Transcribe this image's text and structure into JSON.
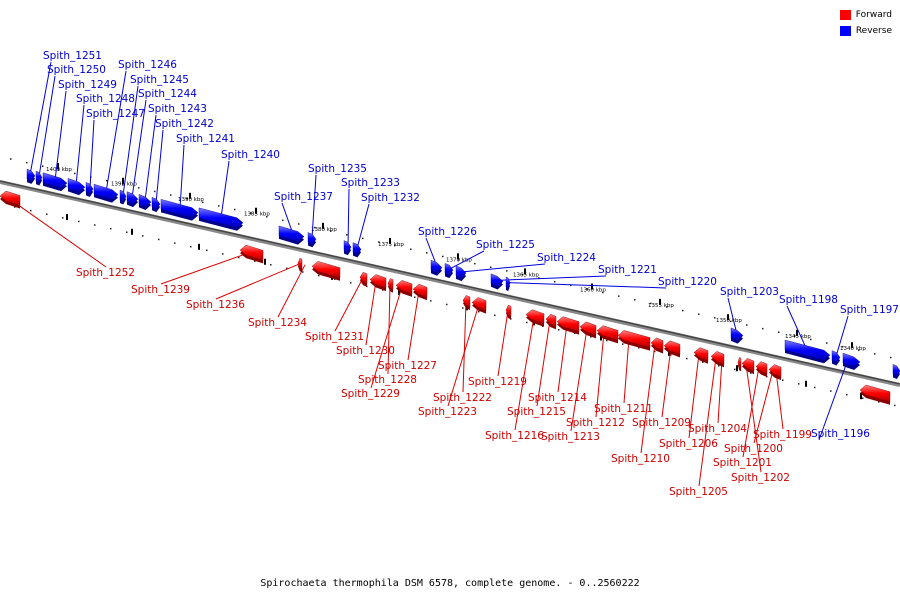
{
  "legend": {
    "forward_label": "Forward",
    "reverse_label": "Reverse",
    "forward_color": "#ff0000",
    "reverse_color": "#0000ff"
  },
  "caption": "Spirochaeta thermophila DSM 6578, complete genome. - 0..2560222",
  "ruler_ticks": [
    "1400 kbp",
    "1395 kbp",
    "1390 kbp",
    "1385 kbp",
    "1380 kbp",
    "1375 kbp",
    "1370 kbp",
    "1365 kbp",
    "1360 kbp",
    "1355 kbp",
    "1350 kbp",
    "1345 kbp",
    "1340 kbp"
  ],
  "forward_genes": [
    "Spith_1252",
    "Spith_1239",
    "Spith_1236",
    "Spith_1234",
    "Spith_1231",
    "Spith_1230",
    "Spith_1228",
    "Spith_1229",
    "Spith_1227",
    "Spith_1222",
    "Spith_1223",
    "Spith_1219",
    "Spith_1216",
    "Spith_1215",
    "Spith_1214",
    "Spith_1213",
    "Spith_1212",
    "Spith_1211",
    "Spith_1210",
    "Spith_1209",
    "Spith_1206",
    "Spith_1205",
    "Spith_1204",
    "Spith_1202",
    "Spith_1201",
    "Spith_1200",
    "Spith_1199"
  ],
  "reverse_genes": [
    "Spith_1251",
    "Spith_1250",
    "Spith_1249",
    "Spith_1248",
    "Spith_1247",
    "Spith_1246",
    "Spith_1245",
    "Spith_1244",
    "Spith_1243",
    "Spith_1242",
    "Spith_1241",
    "Spith_1240",
    "Spith_1237",
    "Spith_1235",
    "Spith_1233",
    "Spith_1232",
    "Spith_1226",
    "Spith_1225",
    "Spith_1224",
    "Spith_1221",
    "Spith_1220",
    "Spith_1203",
    "Spith_1198",
    "Spith_1197",
    "Spith_1196"
  ]
}
